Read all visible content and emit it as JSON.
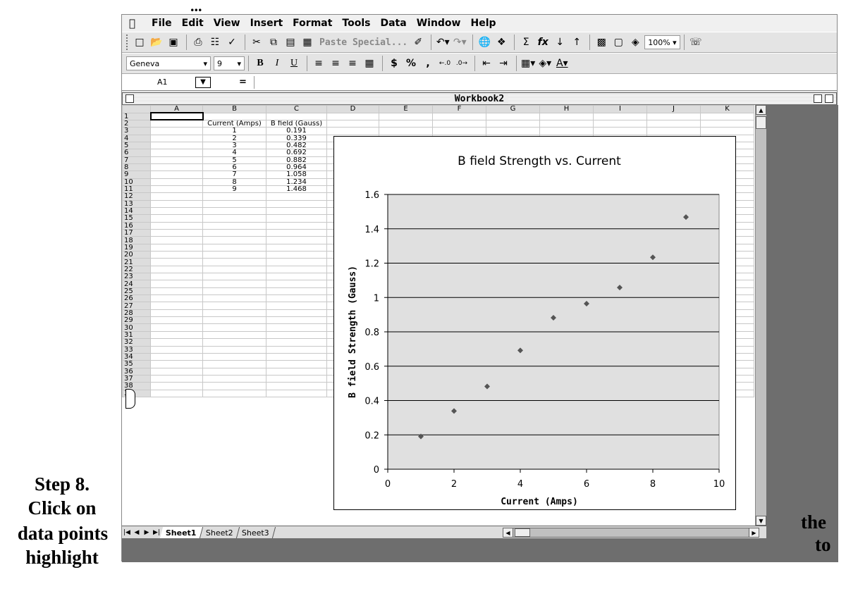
{
  "heading_fragment": "...",
  "menu": [
    "File",
    "Edit",
    "View",
    "Insert",
    "Format",
    "Tools",
    "Data",
    "Window",
    "Help"
  ],
  "toolbar": {
    "paste_special_label": "Paste Special...",
    "zoom_label": "100%",
    "font_name": "Geneva",
    "font_size": "9",
    "bold": "B",
    "italic": "I",
    "underline": "U",
    "currency": "$",
    "percent": "%",
    "comma": ",",
    "sum": "Σ",
    "function": "fx"
  },
  "formula_bar": {
    "cell_ref": "A1",
    "equals": "="
  },
  "workbook": {
    "title": "Workbook2"
  },
  "sheet": {
    "columns": [
      "A",
      "B",
      "C",
      "D",
      "E",
      "F",
      "G",
      "H",
      "I",
      "J",
      "K"
    ],
    "row_count": 39,
    "header_row": 2,
    "headers": {
      "B": "Current (Amps)",
      "C": "B field (Gauss)"
    },
    "data": [
      [
        "1",
        "0.191"
      ],
      [
        "2",
        "0.339"
      ],
      [
        "3",
        "0.482"
      ],
      [
        "4",
        "0.692"
      ],
      [
        "5",
        "0.882"
      ],
      [
        "6",
        "0.964"
      ],
      [
        "7",
        "1.058"
      ],
      [
        "8",
        "1.234"
      ],
      [
        "9",
        "1.468"
      ]
    ]
  },
  "tabs": [
    "Sheet1",
    "Sheet2",
    "Sheet3"
  ],
  "active_tab": "Sheet1",
  "chart_data": {
    "type": "scatter",
    "title": "B field Strength vs. Current",
    "xlabel": "Current (Amps)",
    "ylabel": "B field Strength (Gauss)",
    "xlim": [
      0,
      10
    ],
    "ylim": [
      0,
      1.6
    ],
    "xticks": [
      "0",
      "2",
      "4",
      "6",
      "8",
      "10"
    ],
    "yticks": [
      "0",
      "0.2",
      "0.4",
      "0.6",
      "0.8",
      "1",
      "1.2",
      "1.4",
      "1.6"
    ],
    "x": [
      1,
      2,
      3,
      4,
      5,
      6,
      7,
      8,
      9
    ],
    "y": [
      0.191,
      0.339,
      0.482,
      0.692,
      0.882,
      0.964,
      1.058,
      1.234,
      1.468
    ],
    "plot_bg": "#e0e0e0",
    "marker_color": "#555555",
    "grid": true
  },
  "step_text": {
    "line1": "Step 8.",
    "line2": "Click on",
    "line3": "data points",
    "line4": "highlight",
    "right1": "the",
    "right2": "to"
  }
}
